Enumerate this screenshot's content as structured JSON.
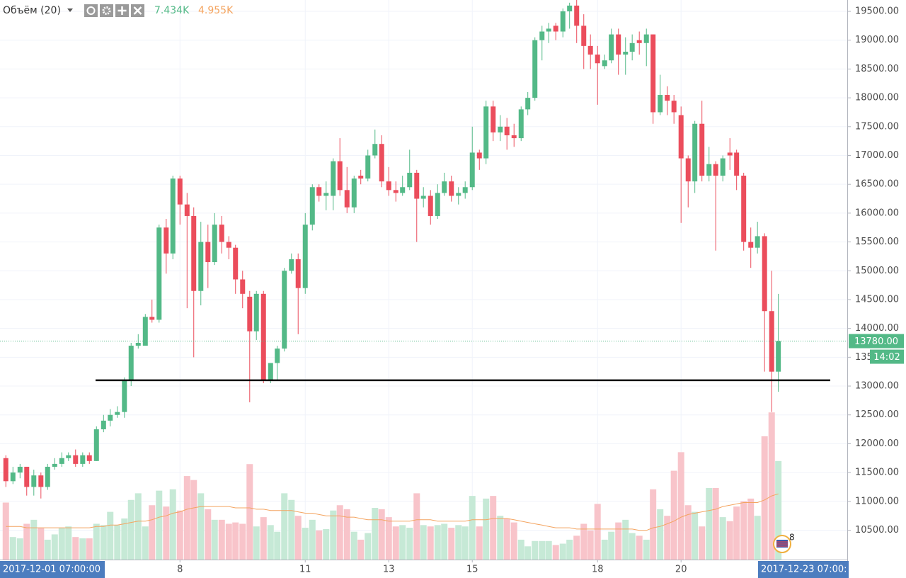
{
  "chart_data": {
    "type": "candlestick",
    "indicator_title": "Объём (20)",
    "volume_label": "7.434K",
    "volume_ma_label": "4.955K",
    "last_price": 13780,
    "last_price_label": "13780.00",
    "countdown": "14:02",
    "cursor_start_label": "2017-12-01 07:00:00",
    "cursor_end_label": "2017-12-23 07:00:",
    "event_count": "8",
    "support_line": 13100,
    "up_color": "#53b987",
    "down_color": "#eb4d5c",
    "volume_up_color": "#c6e9d6",
    "volume_down_color": "#f8c4ca",
    "volume_ma_color": "#f4a460",
    "grid": true,
    "xlim": [
      3.69,
      23.98
    ],
    "xticks": [
      8,
      11,
      13,
      15,
      18,
      20
    ],
    "ylim": [
      9990,
      19697
    ],
    "yticks": [
      {
        "value": 10500,
        "label": "10500.00"
      },
      {
        "value": 11000,
        "label": "11000.00"
      },
      {
        "value": 11500,
        "label": "11500.00"
      },
      {
        "value": 12000,
        "label": "12000.00"
      },
      {
        "value": 12500,
        "label": "12500.00"
      },
      {
        "value": 13000,
        "label": "13000.00"
      },
      {
        "value": 13500,
        "label": "13500.00"
      },
      {
        "value": 14000,
        "label": "14000.00"
      },
      {
        "value": 14500,
        "label": "14500.00"
      },
      {
        "value": 15000,
        "label": "15000.00"
      },
      {
        "value": 15500,
        "label": "15500.00"
      },
      {
        "value": 16000,
        "label": "16000.00"
      },
      {
        "value": 16500,
        "label": "16500.00"
      },
      {
        "value": 17000,
        "label": "17000.00"
      },
      {
        "value": 17500,
        "label": "17500.00"
      },
      {
        "value": 18000,
        "label": "18000.00"
      },
      {
        "value": 18500,
        "label": "18500.00"
      },
      {
        "value": 19000,
        "label": "19000.00"
      },
      {
        "value": 19500,
        "label": "19500.00"
      }
    ],
    "vlim": [
      0,
      42.2
    ],
    "x": [
      3.83,
      4,
      4.17,
      4.33,
      4.5,
      4.67,
      4.83,
      5,
      5.17,
      5.33,
      5.5,
      5.67,
      5.83,
      6,
      6.17,
      6.33,
      6.5,
      6.67,
      6.83,
      7,
      7.17,
      7.33,
      7.5,
      7.67,
      7.83,
      8,
      8.17,
      8.33,
      8.5,
      8.67,
      8.83,
      9,
      9.17,
      9.33,
      9.5,
      9.67,
      9.83,
      10,
      10.17,
      10.33,
      10.5,
      10.67,
      10.83,
      11,
      11.17,
      11.33,
      11.5,
      11.67,
      11.83,
      12,
      12.17,
      12.33,
      12.5,
      12.67,
      12.83,
      13,
      13.17,
      13.33,
      13.5,
      13.67,
      13.83,
      14,
      14.17,
      14.33,
      14.5,
      14.67,
      14.83,
      15,
      15.17,
      15.33,
      15.5,
      15.67,
      15.83,
      16,
      16.17,
      16.33,
      16.5,
      16.67,
      16.83,
      17,
      17.17,
      17.33,
      17.5,
      17.67,
      17.83,
      18,
      18.17,
      18.33,
      18.5,
      18.67,
      18.83,
      19,
      19.17,
      19.33,
      19.5,
      19.67,
      19.83,
      20,
      20.17,
      20.33,
      20.5,
      20.67,
      20.83,
      21,
      21.17,
      21.33,
      21.5,
      21.67,
      21.83,
      22,
      22.17,
      22.33
    ],
    "open": [
      11750,
      11350,
      11500,
      11600,
      11250,
      11450,
      11250,
      11600,
      11650,
      11750,
      11800,
      11650,
      11800,
      11700,
      12250,
      12400,
      12500,
      12550,
      13100,
      13700,
      13700,
      14200,
      14150,
      15750,
      15300,
      16600,
      16150,
      15950,
      14650,
      15500,
      15150,
      15800,
      15500,
      15400,
      14850,
      14550,
      13950,
      14600,
      13100,
      13400,
      13650,
      15000,
      15200,
      14700,
      15800,
      16450,
      16300,
      16300,
      16900,
      16400,
      16100,
      16650,
      16600,
      17000,
      17200,
      16550,
      16400,
      16350,
      16450,
      16700,
      16250,
      16300,
      15950,
      16350,
      16550,
      16300,
      16350,
      16450,
      17050,
      16950,
      17850,
      17400,
      17500,
      17350,
      17300,
      17800,
      18000,
      19000,
      19150,
      19250,
      19150,
      19500,
      19600,
      19250,
      18900,
      18750,
      18550,
      18650,
      19100,
      18750,
      18800,
      19000,
      18950,
      19100,
      17750,
      18050,
      17950,
      17700,
      16950,
      16550,
      17550,
      16650,
      16850,
      16650,
      17050,
      17050,
      16650,
      15500,
      15400,
      15600,
      14300,
      13250
    ],
    "high": [
      11800,
      11600,
      11650,
      11600,
      11550,
      11500,
      11650,
      11750,
      11850,
      11850,
      11900,
      11850,
      11850,
      12300,
      12500,
      12600,
      12650,
      13150,
      13750,
      13900,
      14250,
      14500,
      15800,
      15900,
      16650,
      16650,
      16350,
      16100,
      15850,
      15800,
      16000,
      15950,
      15600,
      15450,
      15000,
      14650,
      14650,
      14650,
      13400,
      13700,
      15050,
      15300,
      15300,
      16000,
      16500,
      16500,
      16550,
      16950,
      17300,
      16800,
      16650,
      16750,
      17100,
      17450,
      17350,
      16800,
      16550,
      16650,
      17100,
      16750,
      16450,
      16400,
      16500,
      16700,
      16650,
      16450,
      16550,
      17500,
      17100,
      17950,
      17950,
      17700,
      17650,
      17550,
      17850,
      18100,
      19050,
      19250,
      19300,
      19300,
      19550,
      19650,
      19700,
      19450,
      19100,
      18900,
      18750,
      19200,
      19200,
      19050,
      19100,
      19150,
      19200,
      19100,
      18400,
      18200,
      18050,
      17850,
      17000,
      17600,
      17950,
      17150,
      16900,
      17000,
      17300,
      17100,
      16700,
      15750,
      15850,
      15650,
      15000,
      14600
    ],
    "low": [
      11250,
      11300,
      11400,
      11100,
      11100,
      11050,
      11200,
      11550,
      11600,
      11700,
      11600,
      11600,
      11650,
      11700,
      12200,
      12300,
      12450,
      12450,
      13000,
      13650,
      13700,
      14100,
      14100,
      14950,
      15200,
      15800,
      14350,
      13500,
      14400,
      14700,
      15100,
      15300,
      15200,
      14600,
      14350,
      12720,
      13800,
      13050,
      13050,
      13100,
      13600,
      14950,
      13900,
      14600,
      15700,
      16200,
      16050,
      16050,
      16300,
      16000,
      16000,
      16500,
      16550,
      16950,
      16450,
      16300,
      16200,
      16300,
      16400,
      15500,
      16100,
      15800,
      15900,
      16300,
      16200,
      16150,
      16250,
      16400,
      16750,
      16850,
      17250,
      17250,
      17100,
      17150,
      17250,
      17700,
      17950,
      18650,
      18950,
      19000,
      19050,
      19200,
      18950,
      18500,
      18500,
      17880,
      18500,
      18600,
      18400,
      18400,
      18650,
      18750,
      18550,
      17550,
      17700,
      17700,
      17550,
      15830,
      16100,
      16350,
      16550,
      16550,
      15350,
      16550,
      16750,
      16400,
      15350,
      15050,
      15300,
      13250,
      12550,
      12900
    ],
    "close": [
      11350,
      11500,
      11600,
      11250,
      11450,
      11250,
      11600,
      11650,
      11750,
      11800,
      11650,
      11800,
      11700,
      12250,
      12400,
      12500,
      12550,
      13100,
      13700,
      13750,
      14200,
      14150,
      15750,
      15300,
      16600,
      16150,
      15950,
      14650,
      15500,
      15150,
      15800,
      15500,
      15400,
      14850,
      14600,
      13950,
      14600,
      13100,
      13400,
      13650,
      15000,
      15200,
      14700,
      15800,
      16450,
      16300,
      16350,
      16900,
      16400,
      16100,
      16600,
      16600,
      17000,
      17200,
      16550,
      16400,
      16350,
      16450,
      16700,
      16250,
      16300,
      15950,
      16350,
      16550,
      16300,
      16350,
      16450,
      17050,
      16950,
      17850,
      17400,
      17500,
      17350,
      17300,
      17800,
      18000,
      19000,
      19150,
      19200,
      19150,
      19500,
      19600,
      19250,
      18900,
      18750,
      18600,
      18650,
      19100,
      18750,
      18800,
      18950,
      18950,
      19100,
      17750,
      18050,
      17950,
      17750,
      16950,
      16550,
      17550,
      16650,
      16850,
      16650,
      16950,
      17000,
      16650,
      15500,
      15400,
      15600,
      14300,
      13250,
      13780
    ],
    "volume": [
      4.3,
      1.7,
      1.6,
      2.7,
      3.0,
      2.4,
      1.5,
      1.9,
      2.4,
      2.5,
      1.7,
      1.6,
      1.6,
      2.7,
      2.6,
      3.6,
      2.6,
      3.1,
      4.5,
      5.0,
      2.5,
      4.1,
      5.2,
      4.0,
      5.3,
      3.7,
      6.3,
      6.0,
      5.0,
      3.8,
      3.0,
      3.0,
      2.7,
      2.8,
      2.7,
      7.2,
      2.5,
      3.2,
      2.6,
      2.1,
      5.0,
      4.5,
      3.3,
      2.4,
      3.0,
      2.2,
      2.3,
      3.7,
      4.1,
      3.8,
      2.1,
      1.5,
      2.0,
      3.9,
      3.8,
      3.2,
      2.5,
      2.6,
      2.4,
      5.0,
      2.6,
      2.5,
      2.6,
      2.7,
      2.4,
      2.6,
      2.5,
      4.8,
      2.5,
      4.6,
      4.8,
      3.3,
      3.1,
      2.8,
      1.5,
      1.0,
      1.4,
      1.4,
      1.4,
      1.1,
      1.2,
      1.5,
      1.8,
      2.7,
      2.2,
      4.2,
      1.5,
      2.1,
      2.8,
      3.0,
      2.0,
      1.8,
      1.5,
      5.3,
      3.8,
      3.3,
      6.7,
      8.1,
      4.1,
      3.6,
      2.5,
      5.4,
      5.4,
      3.2,
      2.9,
      4.0,
      4.4,
      4.6,
      3.3,
      9.3,
      11.1,
      7.434
    ],
    "volume_ma": [
      2.5,
      2.5,
      2.5,
      2.4,
      2.4,
      2.4,
      2.4,
      2.4,
      2.4,
      2.4,
      2.4,
      2.4,
      2.4,
      2.5,
      2.5,
      2.6,
      2.6,
      2.7,
      2.8,
      2.9,
      2.9,
      3.0,
      3.2,
      3.3,
      3.5,
      3.6,
      3.8,
      3.9,
      4.0,
      4.0,
      4.0,
      4.0,
      4.0,
      3.9,
      3.9,
      3.9,
      3.8,
      3.8,
      3.7,
      3.7,
      3.7,
      3.7,
      3.6,
      3.5,
      3.5,
      3.4,
      3.3,
      3.3,
      3.3,
      3.2,
      3.2,
      3.1,
      3.0,
      3.0,
      3.0,
      2.9,
      2.9,
      2.9,
      2.9,
      3.0,
      3.0,
      3.0,
      2.9,
      2.9,
      2.9,
      2.9,
      2.9,
      3.0,
      3.0,
      3.0,
      3.1,
      3.1,
      3.1,
      3.0,
      2.9,
      2.8,
      2.7,
      2.6,
      2.5,
      2.4,
      2.4,
      2.4,
      2.3,
      2.3,
      2.3,
      2.3,
      2.3,
      2.3,
      2.3,
      2.3,
      2.3,
      2.2,
      2.2,
      2.4,
      2.5,
      2.7,
      2.9,
      3.2,
      3.4,
      3.5,
      3.6,
      3.7,
      3.8,
      4.0,
      4.1,
      4.2,
      4.3,
      4.3,
      4.3,
      4.5,
      4.8,
      4.955
    ]
  }
}
